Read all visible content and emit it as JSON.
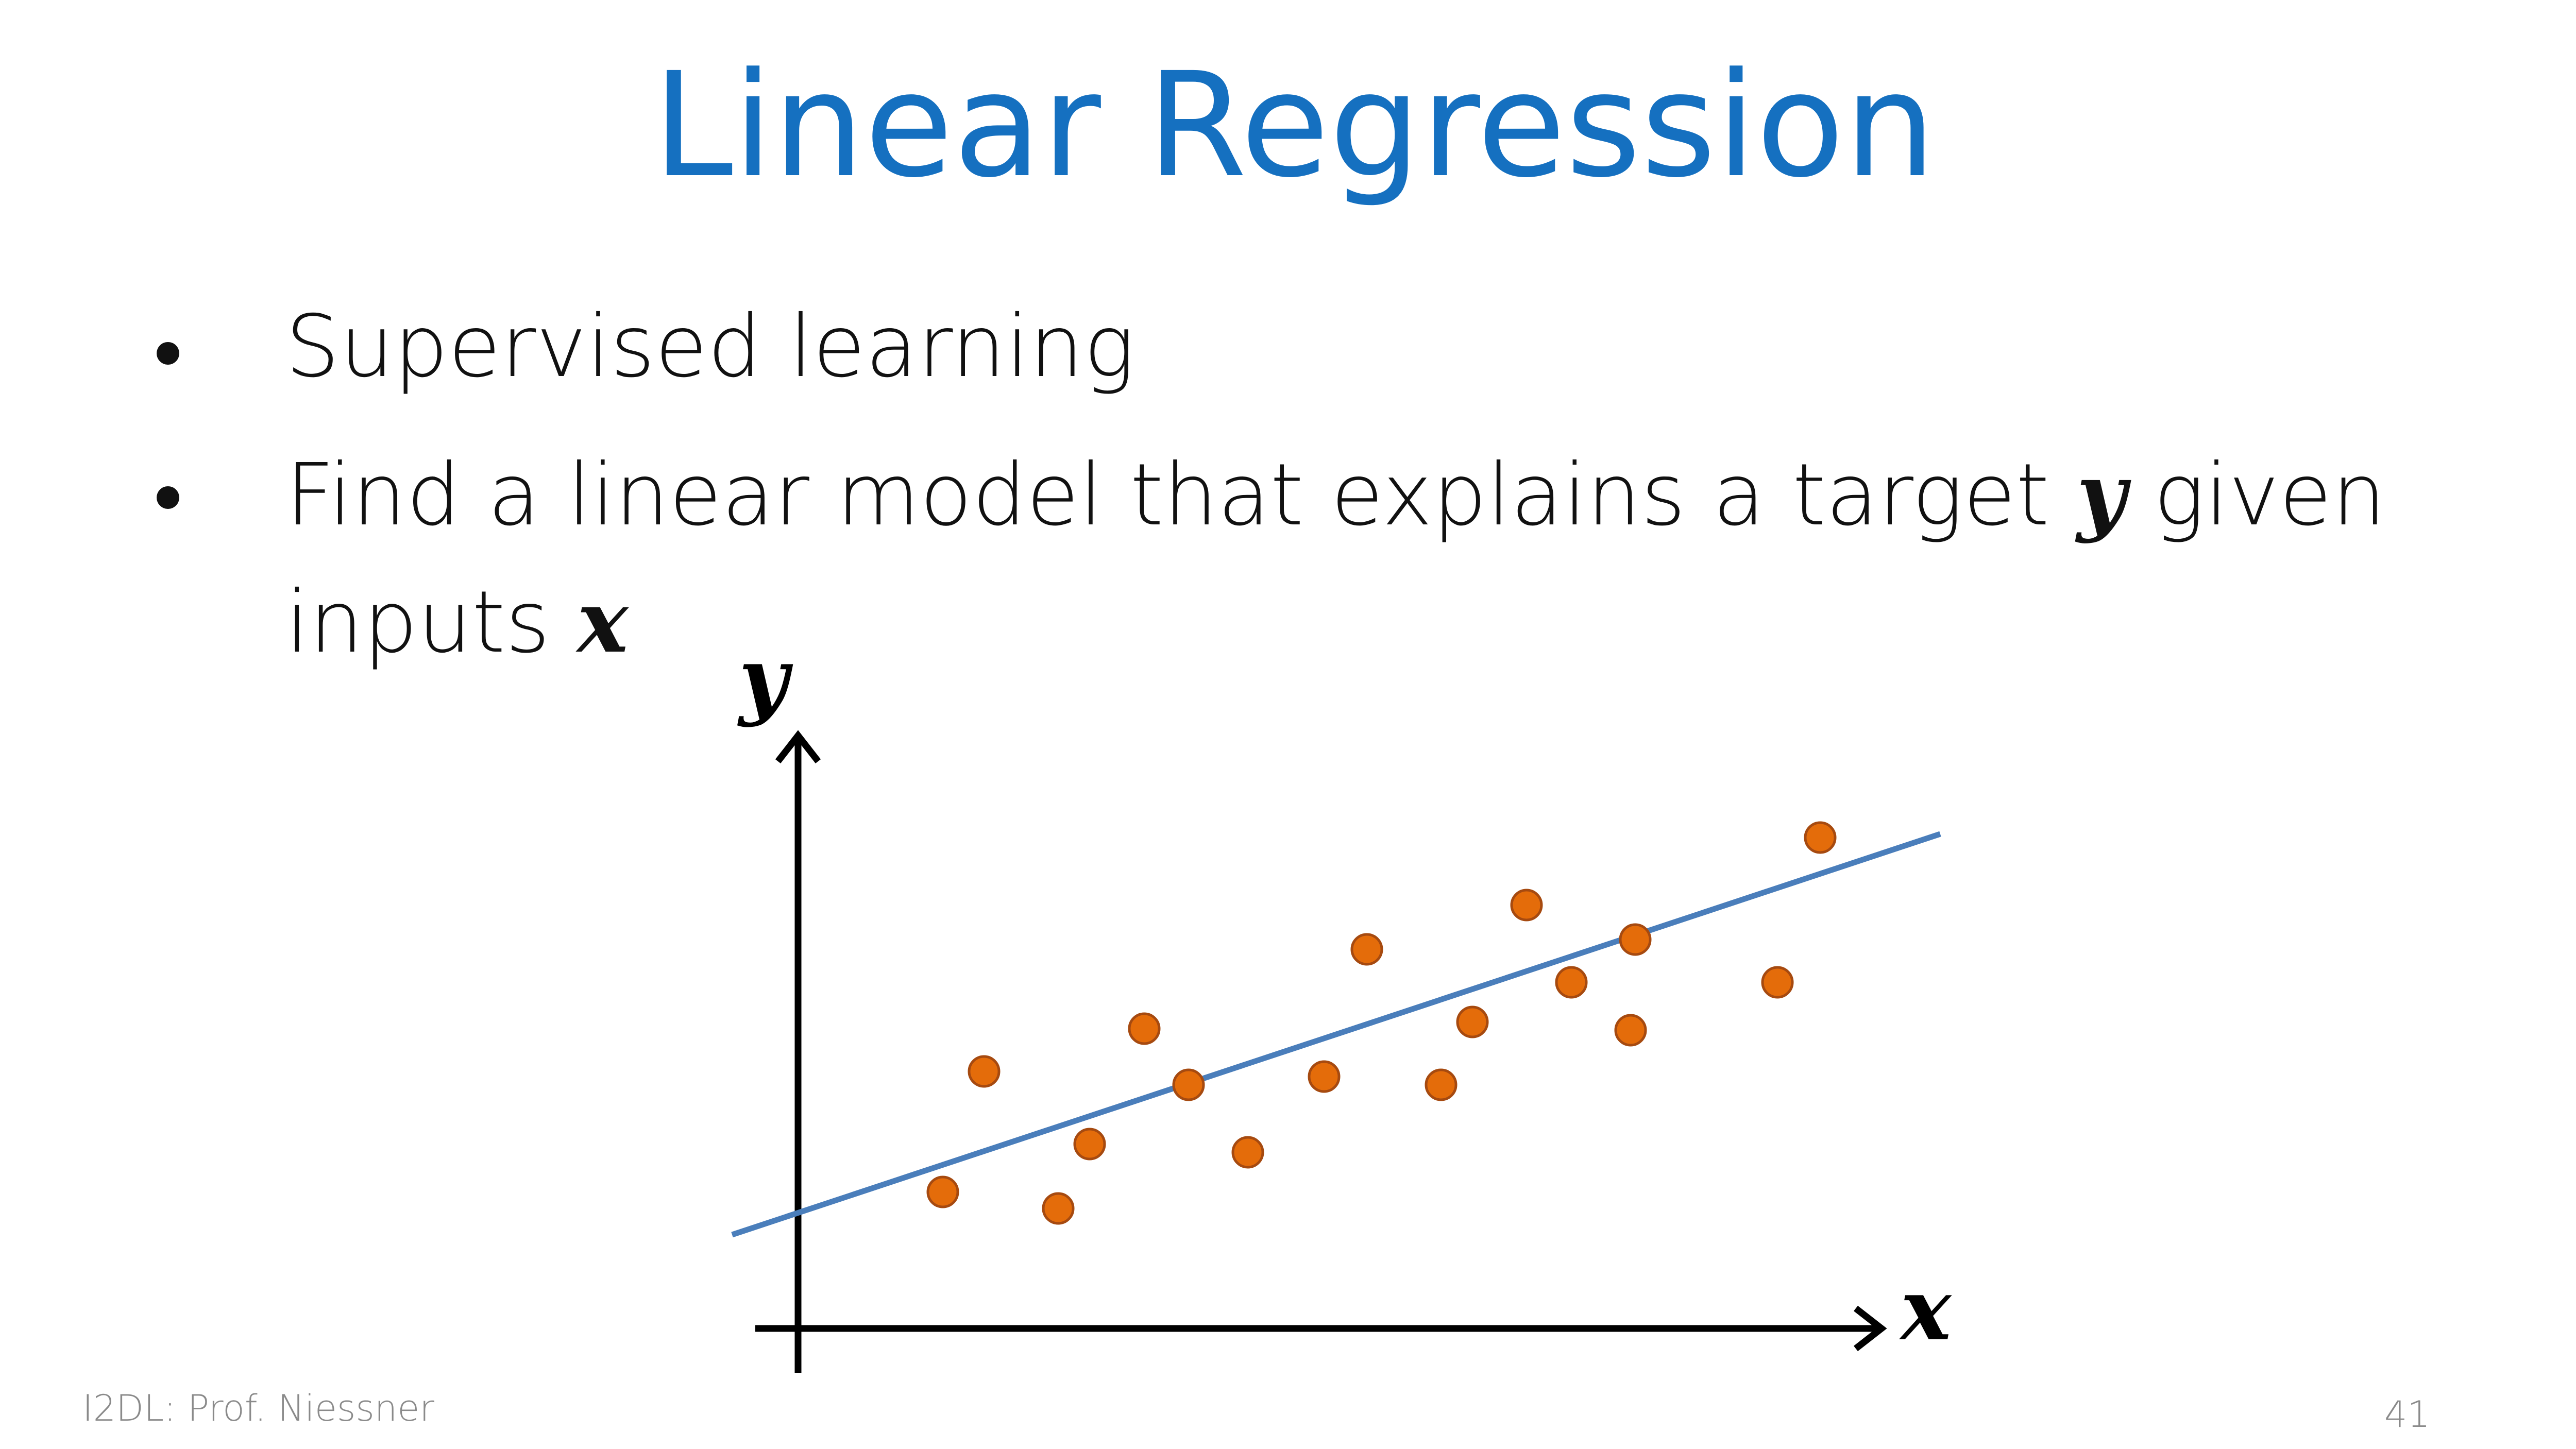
{
  "header": {
    "title": "Linear Regression"
  },
  "bullets": [
    "Supervised learning",
    [
      "Find a linear model that explains a target",
      "y",
      "given",
      "inputs",
      "x"
    ]
  ],
  "figure": {
    "y_label": "y",
    "x_label": "x"
  },
  "footer": {
    "author": "I2DL: Prof. Niessner",
    "page": "41"
  }
}
